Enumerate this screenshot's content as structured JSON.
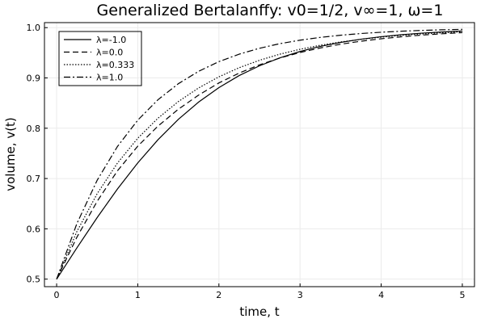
{
  "chart_data": {
    "type": "line",
    "title": "Generalized Bertalanffy: v0=1/2, v∞=1, ω=1",
    "xlabel": "time, t",
    "ylabel": "volume, v(t)",
    "xlim": [
      -0.15,
      5.15
    ],
    "ylim": [
      0.485,
      1.01
    ],
    "xticks": [
      0,
      1,
      2,
      3,
      4,
      5
    ],
    "yticks": [
      0.5,
      0.6,
      0.7,
      0.8,
      0.9,
      1.0
    ],
    "xtick_labels": [
      "0",
      "1",
      "2",
      "3",
      "4",
      "5"
    ],
    "ytick_labels": [
      "0.5",
      "0.6",
      "0.7",
      "0.8",
      "0.9",
      "1.0"
    ],
    "grid": true,
    "legend_position": "top-left",
    "x": [
      0,
      0.25,
      0.5,
      0.75,
      1.0,
      1.25,
      1.5,
      1.75,
      2.0,
      2.25,
      2.5,
      2.75,
      3.0,
      3.25,
      3.5,
      3.75,
      4.0,
      4.25,
      4.5,
      4.75,
      5.0
    ],
    "series": [
      {
        "name": "λ=-1.0",
        "dash": "solid",
        "values": [
          0.5,
          0.5622,
          0.6225,
          0.6792,
          0.7311,
          0.7773,
          0.8176,
          0.852,
          0.8808,
          0.9047,
          0.9241,
          0.9399,
          0.9526,
          0.9627,
          0.9707,
          0.977,
          0.982,
          0.9859,
          0.989,
          0.9914,
          0.9933
        ]
      },
      {
        "name": "λ=0.0",
        "dash": "dashed",
        "values": [
          0.5,
          0.5834,
          0.6548,
          0.7154,
          0.7644,
          0.8044,
          0.8378,
          0.8659,
          0.8901,
          0.9097,
          0.9261,
          0.9395,
          0.9506,
          0.9596,
          0.967,
          0.973,
          0.9779,
          0.9819,
          0.9852,
          0.9878,
          0.99
        ]
      },
      {
        "name": "λ=0.333",
        "dash": "dotted",
        "values": [
          0.5,
          0.5947,
          0.67,
          0.7308,
          0.7801,
          0.8201,
          0.853,
          0.8801,
          0.9022,
          0.9204,
          0.9351,
          0.9472,
          0.957,
          0.965,
          0.9715,
          0.9768,
          0.9811,
          0.9847,
          0.9875,
          0.9899,
          0.9918
        ]
      },
      {
        "name": "λ=1.0",
        "dash": "dashdot",
        "values": [
          0.5,
          0.6106,
          0.6967,
          0.7638,
          0.8161,
          0.8568,
          0.8885,
          0.9132,
          0.9324,
          0.9473,
          0.959,
          0.9681,
          0.9751,
          0.9806,
          0.9849,
          0.9883,
          0.9909,
          0.9929,
          0.9945,
          0.9957,
          0.9966
        ]
      }
    ]
  }
}
